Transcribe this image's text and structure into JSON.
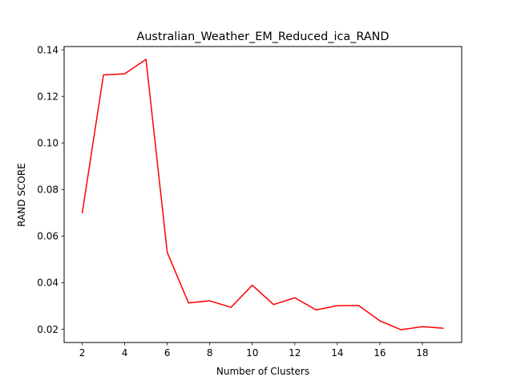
{
  "chart_data": {
    "type": "line",
    "title": "Australian_Weather_EM_Reduced_ica_RAND",
    "xlabel": "Number of Clusters",
    "ylabel": "RAND SCORE",
    "xlim": [
      1.15,
      19.85
    ],
    "ylim": [
      0.0143,
      0.1414
    ],
    "xticks": [
      2,
      4,
      6,
      8,
      10,
      12,
      14,
      16,
      18
    ],
    "xtick_labels": [
      "2",
      "4",
      "6",
      "8",
      "10",
      "12",
      "14",
      "16",
      "18"
    ],
    "yticks": [
      0.02,
      0.04,
      0.06,
      0.08,
      0.1,
      0.12,
      0.14
    ],
    "ytick_labels": [
      "0.02",
      "0.04",
      "0.06",
      "0.08",
      "0.10",
      "0.12",
      "0.14"
    ],
    "grid": false,
    "series": [
      {
        "color": "#ff0000",
        "x": [
          2,
          3,
          4,
          5,
          6,
          7,
          8,
          9,
          10,
          11,
          12,
          13,
          14,
          15,
          16,
          17,
          18,
          19
        ],
        "y": [
          0.0698,
          0.1292,
          0.1297,
          0.1359,
          0.053,
          0.0313,
          0.0322,
          0.0294,
          0.0389,
          0.0306,
          0.0335,
          0.0283,
          0.0301,
          0.0302,
          0.0236,
          0.0198,
          0.0211,
          0.0204
        ]
      }
    ]
  }
}
